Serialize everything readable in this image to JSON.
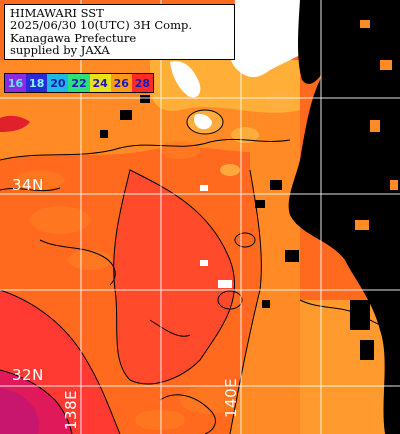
{
  "title": {
    "lines": [
      "HIMAWARI SST",
      "2025/06/30 10(UTC) 3H Comp.",
      "Kanagawa Prefecture",
      "supplied by JAXA"
    ]
  },
  "legend": [
    {
      "value": "16",
      "bg": "#8a2be2",
      "fg": "#6ee0ff"
    },
    {
      "value": "18",
      "bg": "#2a2ad8",
      "fg": "#7fffff"
    },
    {
      "value": "20",
      "bg": "#1fb8e6",
      "fg": "#1a1ab0"
    },
    {
      "value": "22",
      "bg": "#2ee07a",
      "fg": "#1a1ab0"
    },
    {
      "value": "24",
      "bg": "#e8e020",
      "fg": "#1a1ab0"
    },
    {
      "value": "26",
      "bg": "#ff9a1a",
      "fg": "#1a1ab0"
    },
    {
      "value": "28",
      "bg": "#ff2a2a",
      "fg": "#1a1ab0"
    }
  ],
  "grid": {
    "lat_labels": [
      "34N",
      "32N"
    ],
    "lon_labels": [
      "138E",
      "140E"
    ]
  },
  "colors": {
    "land": "#ffffff",
    "cloud": "#000000",
    "sea_warm": "#ff6a1e",
    "sea_mid": "#ff8a26",
    "sea_cool": "#ffae38",
    "sea_hot": "#ff3a32",
    "sea_hottest": "#e01a5a"
  }
}
